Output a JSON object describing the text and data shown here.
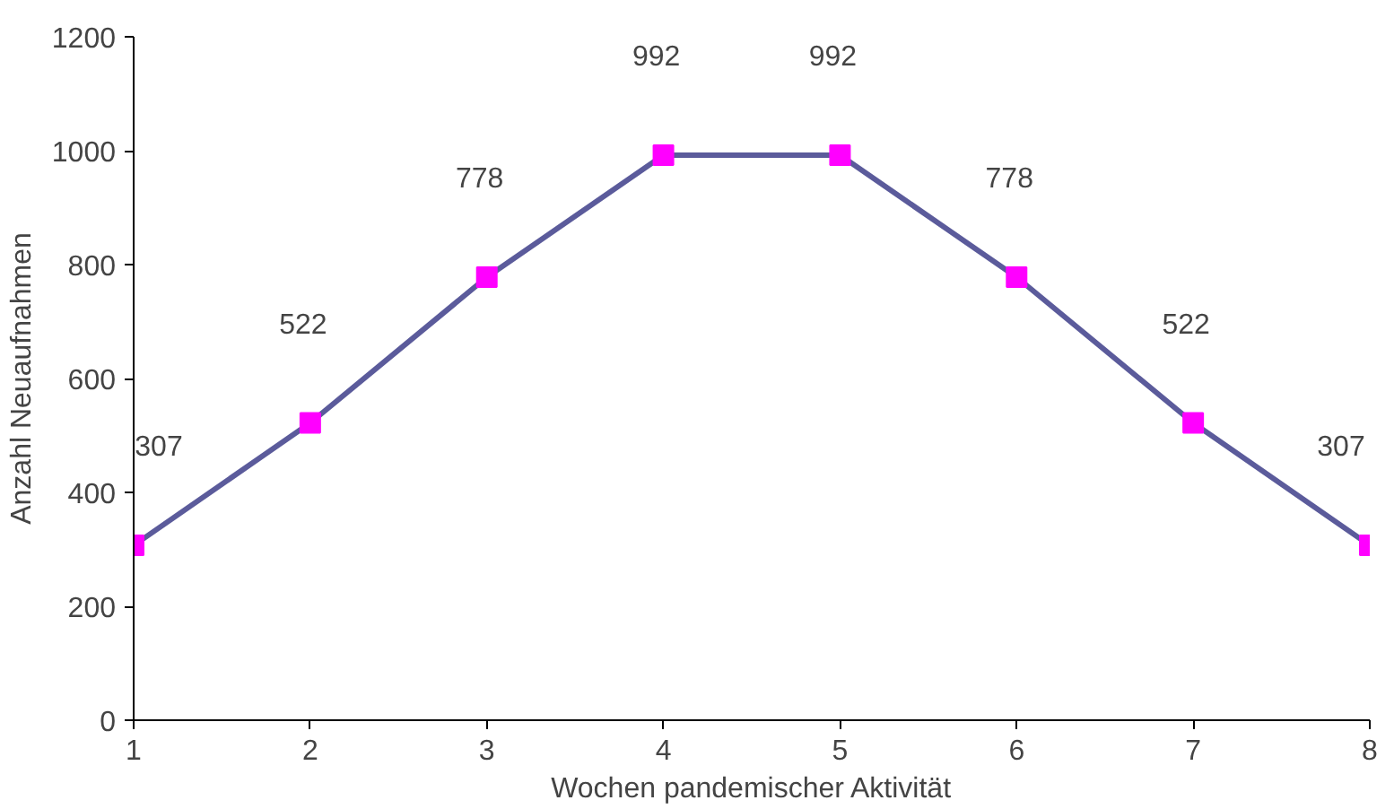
{
  "chart_data": {
    "type": "line",
    "xlabel": "Wochen pandemischer Aktivität",
    "ylabel": "Anzahl Neuaufnahmen",
    "x": [
      1,
      2,
      3,
      4,
      5,
      6,
      7,
      8
    ],
    "series": [
      {
        "color": "#5b5b9b",
        "colors": [
          "#ff00ff",
          "#ff00ff",
          "#ff00ff",
          "#ff00ff",
          "#ff00ff",
          "#ff00ff",
          "#ff00ff",
          "#ff00ff"
        ],
        "values": [
          307,
          522,
          778,
          992,
          992,
          778,
          522,
          307
        ]
      }
    ],
    "xlim": [
      1,
      8
    ],
    "xticks": [
      1,
      2,
      3,
      4,
      5,
      6,
      7,
      8
    ],
    "ylim": [
      0,
      1200
    ],
    "yticks": [
      0,
      200,
      400,
      600,
      800,
      1000,
      1200
    ],
    "grid": false,
    "marker": "square",
    "line_style": "solid",
    "data_labels": true
  }
}
